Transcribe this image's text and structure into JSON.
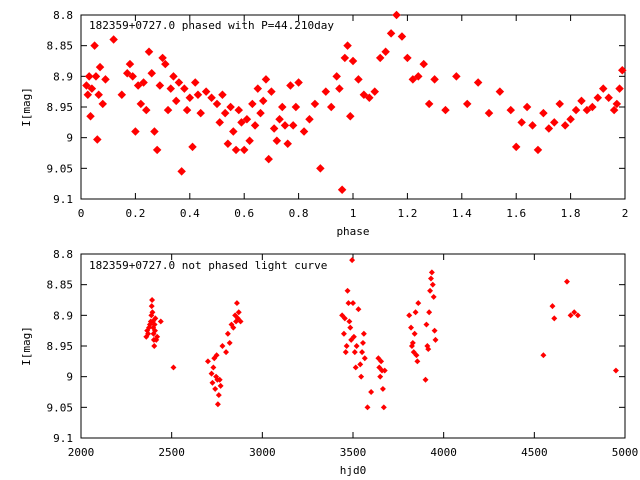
{
  "chart_data": [
    {
      "type": "scatter",
      "title": "182359+0727.0 phased with P=44.210day",
      "xlabel": "phase",
      "ylabel": "I[mag]",
      "xlim": [
        0,
        2
      ],
      "ylim": [
        8.8,
        9.1
      ],
      "y_inverted": true,
      "xticks": [
        "0",
        "0.2",
        "0.4",
        "0.6",
        "0.8",
        "1",
        "1.2",
        "1.4",
        "1.6",
        "1.8",
        "2"
      ],
      "yticks": [
        "8.8",
        "8.85",
        "8.9",
        "8.95",
        "9",
        "9.05",
        "9.1"
      ],
      "marker_color": "#ff0000",
      "grid": false,
      "points": [
        [
          0.02,
          8.915
        ],
        [
          0.025,
          8.93
        ],
        [
          0.03,
          8.9
        ],
        [
          0.035,
          8.965
        ],
        [
          0.04,
          8.92
        ],
        [
          0.05,
          8.85
        ],
        [
          0.055,
          8.9
        ],
        [
          0.06,
          9.003
        ],
        [
          0.065,
          8.93
        ],
        [
          0.07,
          8.885
        ],
        [
          0.08,
          8.945
        ],
        [
          0.09,
          8.905
        ],
        [
          0.12,
          8.84
        ],
        [
          0.15,
          8.93
        ],
        [
          0.17,
          8.895
        ],
        [
          0.18,
          8.88
        ],
        [
          0.19,
          8.9
        ],
        [
          0.2,
          8.99
        ],
        [
          0.21,
          8.915
        ],
        [
          0.22,
          8.945
        ],
        [
          0.23,
          8.91
        ],
        [
          0.24,
          8.955
        ],
        [
          0.25,
          8.86
        ],
        [
          0.26,
          8.895
        ],
        [
          0.27,
          8.99
        ],
        [
          0.28,
          9.02
        ],
        [
          0.29,
          8.915
        ],
        [
          0.3,
          8.87
        ],
        [
          0.31,
          8.88
        ],
        [
          0.32,
          8.955
        ],
        [
          0.33,
          8.92
        ],
        [
          0.34,
          8.9
        ],
        [
          0.35,
          8.94
        ],
        [
          0.36,
          8.91
        ],
        [
          0.37,
          9.055
        ],
        [
          0.38,
          8.92
        ],
        [
          0.39,
          8.955
        ],
        [
          0.4,
          8.935
        ],
        [
          0.41,
          9.015
        ],
        [
          0.42,
          8.91
        ],
        [
          0.43,
          8.93
        ],
        [
          0.44,
          8.96
        ],
        [
          0.46,
          8.925
        ],
        [
          0.48,
          8.935
        ],
        [
          0.5,
          8.945
        ],
        [
          0.51,
          8.975
        ],
        [
          0.52,
          8.93
        ],
        [
          0.53,
          8.96
        ],
        [
          0.54,
          9.01
        ],
        [
          0.55,
          8.95
        ],
        [
          0.56,
          8.99
        ],
        [
          0.57,
          9.02
        ],
        [
          0.58,
          8.955
        ],
        [
          0.59,
          8.975
        ],
        [
          0.6,
          9.02
        ],
        [
          0.61,
          8.97
        ],
        [
          0.62,
          9.005
        ],
        [
          0.63,
          8.945
        ],
        [
          0.64,
          8.98
        ],
        [
          0.65,
          8.92
        ],
        [
          0.66,
          8.96
        ],
        [
          0.67,
          8.94
        ],
        [
          0.68,
          8.905
        ],
        [
          0.69,
          9.035
        ],
        [
          0.7,
          8.925
        ],
        [
          0.71,
          8.985
        ],
        [
          0.72,
          9.005
        ],
        [
          0.73,
          8.97
        ],
        [
          0.74,
          8.95
        ],
        [
          0.75,
          8.98
        ],
        [
          0.76,
          9.01
        ],
        [
          0.77,
          8.915
        ],
        [
          0.78,
          8.98
        ],
        [
          0.79,
          8.95
        ],
        [
          0.8,
          8.91
        ],
        [
          0.82,
          8.99
        ],
        [
          0.84,
          8.97
        ],
        [
          0.86,
          8.945
        ],
        [
          0.88,
          9.05
        ],
        [
          0.9,
          8.925
        ],
        [
          0.92,
          8.95
        ],
        [
          0.94,
          8.9
        ],
        [
          0.95,
          8.92
        ],
        [
          0.96,
          9.085
        ],
        [
          0.97,
          8.87
        ],
        [
          0.98,
          8.85
        ],
        [
          0.99,
          8.965
        ],
        [
          1.0,
          8.875
        ],
        [
          1.02,
          8.905
        ],
        [
          1.04,
          8.93
        ],
        [
          1.06,
          8.935
        ],
        [
          1.08,
          8.925
        ],
        [
          1.1,
          8.87
        ],
        [
          1.12,
          8.86
        ],
        [
          1.14,
          8.83
        ],
        [
          1.16,
          8.8
        ],
        [
          1.18,
          8.835
        ],
        [
          1.2,
          8.87
        ],
        [
          1.22,
          8.905
        ],
        [
          1.24,
          8.9
        ],
        [
          1.26,
          8.88
        ],
        [
          1.28,
          8.945
        ],
        [
          1.3,
          8.905
        ],
        [
          1.34,
          8.955
        ],
        [
          1.38,
          8.9
        ],
        [
          1.42,
          8.945
        ],
        [
          1.46,
          8.91
        ],
        [
          1.5,
          8.96
        ],
        [
          1.54,
          8.925
        ],
        [
          1.58,
          8.955
        ],
        [
          1.6,
          9.015
        ],
        [
          1.62,
          8.975
        ],
        [
          1.64,
          8.95
        ],
        [
          1.66,
          8.98
        ],
        [
          1.68,
          9.02
        ],
        [
          1.7,
          8.96
        ],
        [
          1.72,
          8.985
        ],
        [
          1.74,
          8.975
        ],
        [
          1.76,
          8.945
        ],
        [
          1.78,
          8.98
        ],
        [
          1.8,
          8.97
        ],
        [
          1.82,
          8.955
        ],
        [
          1.84,
          8.94
        ],
        [
          1.86,
          8.955
        ],
        [
          1.88,
          8.95
        ],
        [
          1.9,
          8.935
        ],
        [
          1.92,
          8.92
        ],
        [
          1.94,
          8.935
        ],
        [
          1.96,
          8.955
        ],
        [
          1.97,
          8.945
        ],
        [
          1.98,
          8.92
        ],
        [
          1.99,
          8.89
        ]
      ]
    },
    {
      "type": "scatter",
      "title": "182359+0727.0 not phased light curve",
      "xlabel": "hjd0",
      "ylabel": "I[mag]",
      "xlim": [
        2000,
        5000
      ],
      "ylim": [
        8.8,
        9.1
      ],
      "y_inverted": true,
      "xticks": [
        "2000",
        "2500",
        "3000",
        "3500",
        "4000",
        "4500",
        "5000"
      ],
      "yticks": [
        "8.8",
        "8.85",
        "8.9",
        "8.95",
        "9",
        "9.05",
        "9.1"
      ],
      "marker_color": "#ff0000",
      "grid": false,
      "points": [
        [
          2360,
          8.935
        ],
        [
          2365,
          8.925
        ],
        [
          2370,
          8.93
        ],
        [
          2375,
          8.92
        ],
        [
          2380,
          8.915
        ],
        [
          2385,
          8.91
        ],
        [
          2388,
          8.9
        ],
        [
          2390,
          8.885
        ],
        [
          2392,
          8.875
        ],
        [
          2394,
          8.895
        ],
        [
          2396,
          8.91
        ],
        [
          2398,
          8.92
        ],
        [
          2400,
          8.93
        ],
        [
          2402,
          8.94
        ],
        [
          2404,
          8.95
        ],
        [
          2406,
          8.915
        ],
        [
          2408,
          8.925
        ],
        [
          2410,
          8.905
        ],
        [
          2415,
          8.94
        ],
        [
          2420,
          8.935
        ],
        [
          2440,
          8.91
        ],
        [
          2510,
          8.985
        ],
        [
          2700,
          8.975
        ],
        [
          2720,
          8.995
        ],
        [
          2725,
          9.01
        ],
        [
          2730,
          8.985
        ],
        [
          2735,
          8.97
        ],
        [
          2740,
          9.02
        ],
        [
          2745,
          9.0
        ],
        [
          2748,
          8.965
        ],
        [
          2752,
          9.005
        ],
        [
          2755,
          9.045
        ],
        [
          2760,
          9.03
        ],
        [
          2765,
          9.005
        ],
        [
          2770,
          9.015
        ],
        [
          2780,
          8.95
        ],
        [
          2800,
          8.96
        ],
        [
          2810,
          8.93
        ],
        [
          2820,
          8.945
        ],
        [
          2830,
          8.915
        ],
        [
          2840,
          8.92
        ],
        [
          2850,
          8.9
        ],
        [
          2855,
          8.91
        ],
        [
          2860,
          8.88
        ],
        [
          2865,
          8.905
        ],
        [
          2870,
          8.895
        ],
        [
          2880,
          8.91
        ],
        [
          3440,
          8.9
        ],
        [
          3450,
          8.93
        ],
        [
          3455,
          8.905
        ],
        [
          3460,
          8.96
        ],
        [
          3465,
          8.95
        ],
        [
          3470,
          8.86
        ],
        [
          3475,
          8.88
        ],
        [
          3480,
          8.91
        ],
        [
          3485,
          8.92
        ],
        [
          3490,
          8.94
        ],
        [
          3495,
          8.81
        ],
        [
          3500,
          8.88
        ],
        [
          3505,
          8.935
        ],
        [
          3510,
          8.96
        ],
        [
          3515,
          8.985
        ],
        [
          3520,
          8.95
        ],
        [
          3530,
          8.89
        ],
        [
          3540,
          8.98
        ],
        [
          3545,
          9.0
        ],
        [
          3550,
          8.96
        ],
        [
          3555,
          8.945
        ],
        [
          3560,
          8.93
        ],
        [
          3565,
          8.97
        ],
        [
          3580,
          9.05
        ],
        [
          3600,
          9.025
        ],
        [
          3640,
          8.97
        ],
        [
          3645,
          8.985
        ],
        [
          3650,
          9.0
        ],
        [
          3655,
          8.975
        ],
        [
          3660,
          8.99
        ],
        [
          3665,
          9.02
        ],
        [
          3670,
          9.05
        ],
        [
          3675,
          8.99
        ],
        [
          3810,
          8.9
        ],
        [
          3820,
          8.92
        ],
        [
          3825,
          8.95
        ],
        [
          3830,
          8.945
        ],
        [
          3835,
          8.96
        ],
        [
          3840,
          8.93
        ],
        [
          3845,
          8.895
        ],
        [
          3850,
          8.965
        ],
        [
          3855,
          8.975
        ],
        [
          3860,
          8.88
        ],
        [
          3900,
          9.005
        ],
        [
          3905,
          8.915
        ],
        [
          3910,
          8.95
        ],
        [
          3915,
          8.955
        ],
        [
          3920,
          8.895
        ],
        [
          3925,
          8.86
        ],
        [
          3930,
          8.84
        ],
        [
          3935,
          8.83
        ],
        [
          3940,
          8.85
        ],
        [
          3945,
          8.87
        ],
        [
          3950,
          8.925
        ],
        [
          3955,
          8.94
        ],
        [
          4550,
          8.965
        ],
        [
          4600,
          8.885
        ],
        [
          4610,
          8.905
        ],
        [
          4680,
          8.845
        ],
        [
          4700,
          8.9
        ],
        [
          4720,
          8.895
        ],
        [
          4740,
          8.9
        ],
        [
          4950,
          8.99
        ]
      ]
    }
  ]
}
